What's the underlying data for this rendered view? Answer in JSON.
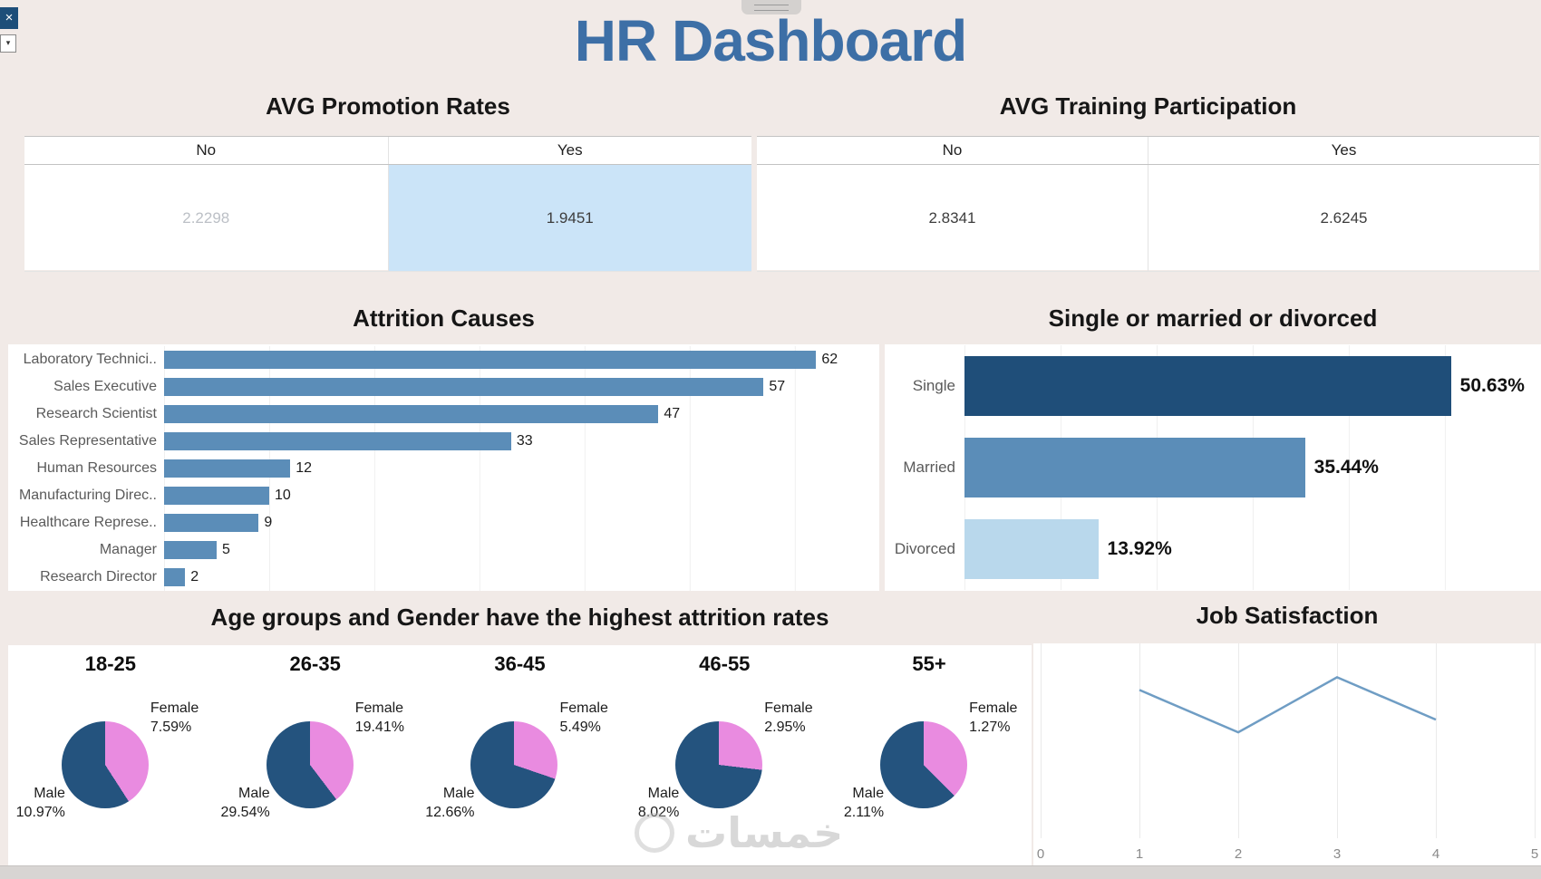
{
  "app": {
    "title": "HR Dashboard",
    "close_button": "×",
    "dropdown_caret": "▾",
    "watermark": "خمسات"
  },
  "chart_data": [
    {
      "id": "promotion",
      "type": "table",
      "title": "AVG Promotion Rates",
      "columns": [
        "No",
        "Yes"
      ],
      "values": [
        "2.2298",
        "1.9451"
      ],
      "highlight_column": "Yes",
      "highlight_color": "#cbe4f8",
      "muted_value_color": "#bcc0c6"
    },
    {
      "id": "training",
      "type": "table",
      "title": "AVG Training Participation",
      "columns": [
        "No",
        "Yes"
      ],
      "values": [
        "2.8341",
        "2.6245"
      ]
    },
    {
      "id": "attrition_causes",
      "type": "bar",
      "orientation": "horizontal",
      "title": "Attrition Causes",
      "categories": [
        "Laboratory Technici..",
        "Sales Executive",
        "Research Scientist",
        "Sales Representative",
        "Human Resources",
        "Manufacturing Direc..",
        "Healthcare Represe..",
        "Manager",
        "Research Director"
      ],
      "values": [
        62,
        57,
        47,
        33,
        12,
        10,
        9,
        5,
        2
      ],
      "xlim": [
        0,
        68
      ],
      "bar_color": "#5b8db8"
    },
    {
      "id": "marital_status",
      "type": "bar",
      "orientation": "horizontal",
      "title": "Single or married or divorced",
      "categories": [
        "Single",
        "Married",
        "Divorced"
      ],
      "values": [
        50.63,
        35.44,
        13.92
      ],
      "labels": [
        "50.63%",
        "35.44%",
        "13.92%"
      ],
      "xlim": [
        0,
        60
      ],
      "bar_colors": [
        "#1f4e79",
        "#5b8db8",
        "#b9d8ec"
      ]
    },
    {
      "id": "age_gender_attrition",
      "type": "pie",
      "title": "Age groups and Gender have the highest attrition rates",
      "legend": [
        "Male",
        "Female"
      ],
      "unit": "%",
      "colors": {
        "Male": "#24537e",
        "Female": "#e98be0"
      },
      "groups": [
        {
          "age": "18-25",
          "male": 10.97,
          "female": 7.59
        },
        {
          "age": "26-35",
          "male": 29.54,
          "female": 19.41
        },
        {
          "age": "36-45",
          "male": 12.66,
          "female": 5.49
        },
        {
          "age": "46-55",
          "male": 8.02,
          "female": 2.95
        },
        {
          "age": "55+",
          "male": 2.11,
          "female": 1.27
        }
      ]
    },
    {
      "id": "job_satisfaction",
      "type": "line",
      "title": "Job Satisfaction",
      "x": [
        1,
        2,
        3,
        4
      ],
      "y": [
        3.5,
        2.5,
        3.8,
        2.8
      ],
      "x_ticks": [
        "0",
        "1",
        "2",
        "3",
        "4",
        "5"
      ],
      "xlim": [
        0,
        5
      ],
      "ylim": [
        0,
        4.6
      ],
      "line_color": "#6f9dc4"
    }
  ]
}
